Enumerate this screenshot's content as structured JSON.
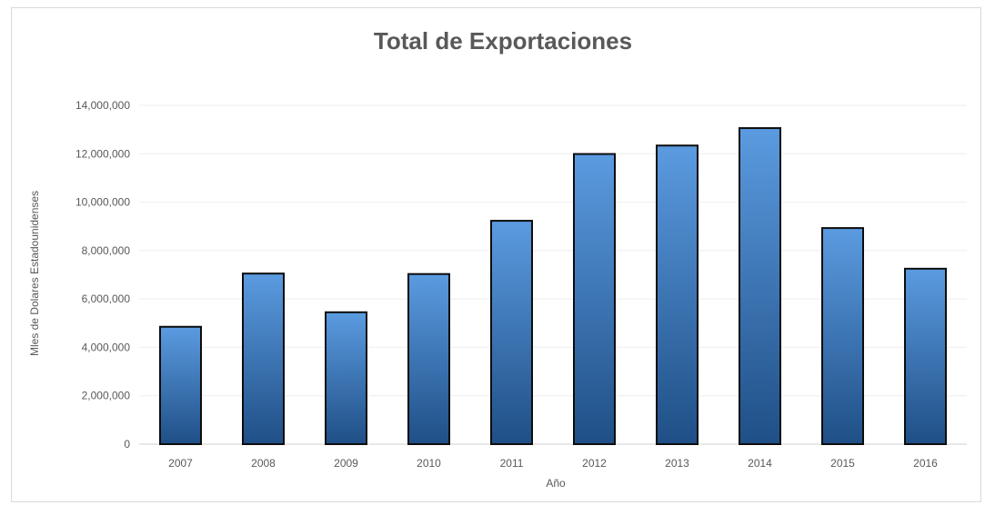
{
  "chart_data": {
    "type": "bar",
    "title": "Total de Exportaciones",
    "xlabel": "Año",
    "ylabel": "Mles de Dolares Estadounidenses",
    "categories": [
      "2007",
      "2008",
      "2009",
      "2010",
      "2011",
      "2012",
      "2013",
      "2014",
      "2015",
      "2016"
    ],
    "values": [
      4850000,
      7050000,
      5450000,
      7030000,
      9230000,
      11990000,
      12340000,
      13060000,
      8930000,
      7250000
    ],
    "ylim": [
      0,
      14000000
    ],
    "yticks": [
      0,
      2000000,
      4000000,
      6000000,
      8000000,
      10000000,
      12000000,
      14000000
    ],
    "ytick_labels": [
      "0",
      "2,000,000",
      "4,000,000",
      "6,000,000",
      "8,000,000",
      "10,000,000",
      "12,000,000",
      "14,000,000"
    ],
    "grid": true,
    "legend": "none",
    "colors": {
      "bar_light": "#4f8fd6",
      "bar_dark": "#1f4f86",
      "bar_edge": "#0d0d0d",
      "grid": "#eeeeee",
      "text": "#595959"
    }
  }
}
